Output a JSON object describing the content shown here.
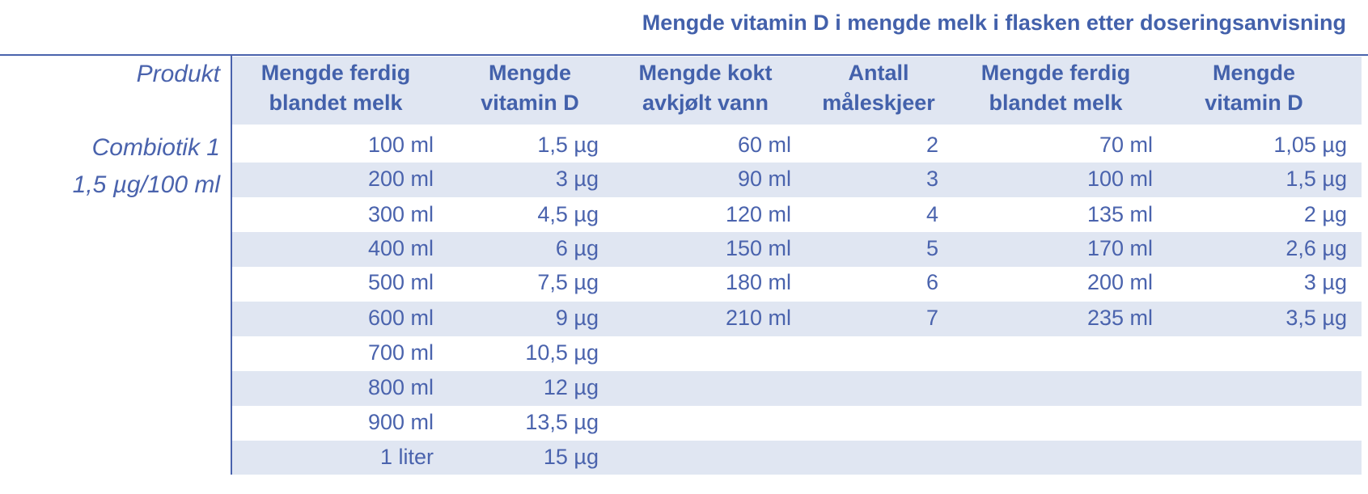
{
  "title": "Mengde vitamin D i mengde melk i flasken etter doseringsanvisning",
  "product_header": "Produkt",
  "product": {
    "name_line1": "Combiotik 1",
    "name_line2": "1,5 µg/100 ml"
  },
  "headers": [
    {
      "line1": "Mengde ferdig",
      "line2": "blandet melk"
    },
    {
      "line1": "Mengde",
      "line2": "vitamin D"
    },
    {
      "line1": "Mengde kokt",
      "line2": "avkjølt vann"
    },
    {
      "line1": "Antall",
      "line2": "måleskjeer"
    },
    {
      "line1": "Mengde ferdig",
      "line2": "blandet melk"
    },
    {
      "line1": "Mengde",
      "line2": "vitamin D"
    }
  ],
  "rows": [
    [
      "100 ml",
      "1,5 µg",
      "60 ml",
      "2",
      "70 ml",
      "1,05 µg"
    ],
    [
      "200 ml",
      "3 µg",
      "90 ml",
      "3",
      "100 ml",
      "1,5 µg"
    ],
    [
      "300 ml",
      "4,5 µg",
      "120 ml",
      "4",
      "135 ml",
      "2 µg"
    ],
    [
      "400 ml",
      "6 µg",
      "150 ml",
      "5",
      "170 ml",
      "2,6 µg"
    ],
    [
      "500 ml",
      "7,5 µg",
      "180 ml",
      "6",
      "200 ml",
      "3 µg"
    ],
    [
      "600 ml",
      "9 µg",
      "210 ml",
      "7",
      "235 ml",
      "3,5 µg"
    ],
    [
      "700 ml",
      "10,5 µg",
      "",
      "",
      "",
      ""
    ],
    [
      "800 ml",
      "12 µg",
      "",
      "",
      "",
      ""
    ],
    [
      "900 ml",
      "13,5 µg",
      "",
      "",
      "",
      ""
    ],
    [
      "1 liter",
      "15 µg",
      "",
      "",
      "",
      ""
    ]
  ],
  "colors": {
    "text": "#4a63ad",
    "band": "#e0e6f2",
    "rule": "#4a63ad"
  }
}
